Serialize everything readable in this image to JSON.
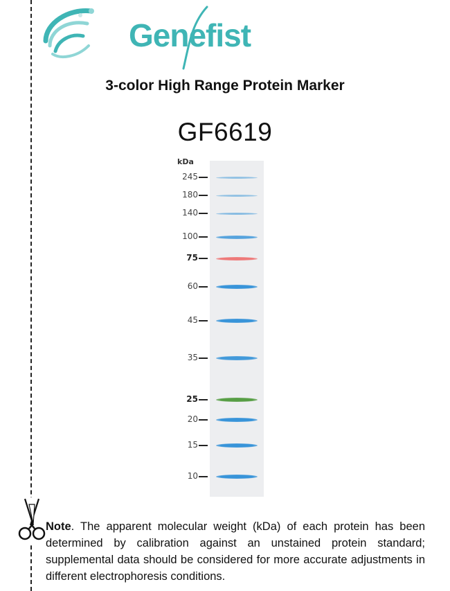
{
  "brand": {
    "name": "Genefist",
    "colors": {
      "teal": "#3fb5b5",
      "light_teal": "#8fd6d6"
    }
  },
  "title": "3-color High Range Protein Marker",
  "catalog_number": "GF6619",
  "gel": {
    "unit_label": "kDa",
    "lane_color": "#edeef0",
    "bands": [
      {
        "kda": "245",
        "color": "#6aaede",
        "intensity": "faint",
        "bold_label": false
      },
      {
        "kda": "180",
        "color": "#6aaede",
        "intensity": "faint",
        "bold_label": false
      },
      {
        "kda": "140",
        "color": "#5aa5dc",
        "intensity": "faint",
        "bold_label": false
      },
      {
        "kda": "100",
        "color": "#4e9fdc",
        "intensity": "medium",
        "bold_label": false
      },
      {
        "kda": "75",
        "color": "#ee7373",
        "intensity": "medium",
        "bold_label": true
      },
      {
        "kda": "60",
        "color": "#2f8fd8",
        "intensity": "strong",
        "bold_label": false
      },
      {
        "kda": "45",
        "color": "#2f8fd8",
        "intensity": "strong",
        "bold_label": false
      },
      {
        "kda": "35",
        "color": "#3a95d9",
        "intensity": "strong",
        "bold_label": false
      },
      {
        "kda": "25",
        "color": "#4f9a3c",
        "intensity": "strong",
        "bold_label": true
      },
      {
        "kda": "20",
        "color": "#2f8fd8",
        "intensity": "strong",
        "bold_label": false
      },
      {
        "kda": "15",
        "color": "#2f8fd8",
        "intensity": "strong",
        "bold_label": false
      },
      {
        "kda": "10",
        "color": "#2f8fd8",
        "intensity": "strong",
        "bold_label": false
      }
    ]
  },
  "note": {
    "lead": "Note",
    "body": ". The apparent molecular weight (kDa) of each protein has been determined by calibration against an unstained protein standard; supplemental data should be considered for more accurate adjustments in different electrophoresis conditions."
  },
  "icons": {
    "cut": "scissors-icon",
    "logo": "dna-swirl-icon"
  }
}
